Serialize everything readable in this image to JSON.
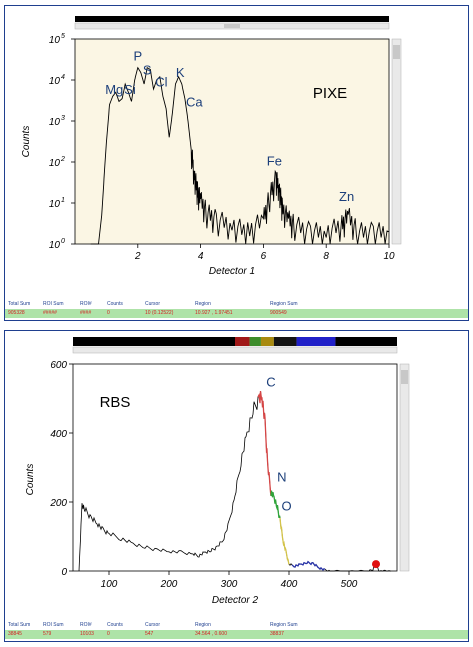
{
  "pixe": {
    "status_labels": [
      "Total Sum",
      "ROI Sum",
      "ROI#",
      "Counts",
      "Cursor",
      "Region",
      "Region Sum"
    ],
    "status_values": [
      "905328",
      "#####",
      "####",
      "0",
      "10 (0.12522)",
      "10.927 , 1.97451",
      "900549"
    ]
  },
  "rbs": {
    "status_labels": [
      "Total Sum",
      "ROI Sum",
      "ROI#",
      "Counts",
      "Cursor",
      "Region",
      "Region Sum"
    ],
    "status_values": [
      "38845",
      "579",
      "10103",
      "0",
      "547",
      "34.564 , 0.600",
      "38837"
    ]
  },
  "chart_data": [
    {
      "type": "line",
      "title": "",
      "annotation_title": "PIXE",
      "xlabel": "Detector 1",
      "ylabel": "Counts",
      "x_ticks": [
        "2",
        "4",
        "6",
        "8",
        "10"
      ],
      "y_ticks": [
        "10",
        "10",
        "10",
        "10",
        "10",
        "10"
      ],
      "y_tick_exponents": [
        "0",
        "1",
        "2",
        "3",
        "4",
        "5"
      ],
      "xlim": [
        0,
        10
      ],
      "ylim": [
        1,
        100000
      ],
      "y_scale": "log",
      "background_color": "#fbf6e4",
      "line_color": "#000000",
      "peak_labels": [
        {
          "label": "Mg",
          "x": 1.25,
          "y": 3600
        },
        {
          "label": "Si",
          "x": 1.75,
          "y": 3600
        },
        {
          "label": "P",
          "x": 2.0,
          "y": 24000
        },
        {
          "label": "S",
          "x": 2.3,
          "y": 11000
        },
        {
          "label": "Cl",
          "x": 2.75,
          "y": 5500
        },
        {
          "label": "K",
          "x": 3.35,
          "y": 9500
        },
        {
          "label": "Ca",
          "x": 3.8,
          "y": 1800
        },
        {
          "label": "Fe",
          "x": 6.35,
          "y": 65
        },
        {
          "label": "Zn",
          "x": 8.65,
          "y": 9
        }
      ],
      "spectrum": {
        "x": [
          0.5,
          0.75,
          0.85,
          0.95,
          1.0,
          1.1,
          1.2,
          1.3,
          1.4,
          1.5,
          1.6,
          1.7,
          1.8,
          1.9,
          2.0,
          2.1,
          2.2,
          2.3,
          2.4,
          2.5,
          2.6,
          2.7,
          2.8,
          2.9,
          3.0,
          3.1,
          3.2,
          3.3,
          3.4,
          3.5,
          3.6,
          3.7,
          3.8,
          3.9,
          4.0,
          4.2,
          4.5,
          5.0,
          5.5,
          6.0,
          6.2,
          6.4,
          6.5,
          6.6,
          6.8,
          7.0,
          7.5,
          8.0,
          8.5,
          8.7,
          9.0,
          9.5,
          10.0
        ],
        "y": [
          1,
          1,
          5,
          80,
          300,
          2500,
          4000,
          5000,
          3000,
          3500,
          8000,
          5000,
          3000,
          10000,
          20000,
          15000,
          8000,
          20000,
          18000,
          6000,
          10000,
          12000,
          4000,
          2000,
          400,
          1500,
          8000,
          12000,
          8000,
          3500,
          1000,
          200,
          50,
          20,
          12,
          6,
          4,
          3,
          2,
          4,
          15,
          40,
          25,
          8,
          4,
          3,
          2,
          2,
          3,
          5,
          2,
          2,
          2
        ]
      }
    },
    {
      "type": "line",
      "title": "",
      "annotation_title": "RBS",
      "xlabel": "Detector 2",
      "ylabel": "Counts",
      "x_ticks": [
        "100",
        "200",
        "300",
        "400",
        "500"
      ],
      "y_ticks": [
        "0",
        "200",
        "400",
        "600"
      ],
      "xlim": [
        40,
        580
      ],
      "ylim": [
        0,
        600
      ],
      "background_color": "#ffffff",
      "line_color": "#000000",
      "element_labels": [
        {
          "label": "C",
          "x": 370,
          "y": 535
        },
        {
          "label": "N",
          "x": 388,
          "y": 260
        },
        {
          "label": "O",
          "x": 396,
          "y": 175
        }
      ],
      "spectrum": {
        "x": [
          50,
          55,
          60,
          70,
          80,
          90,
          100,
          120,
          140,
          160,
          180,
          200,
          220,
          240,
          250,
          260,
          270,
          280,
          290,
          300,
          310,
          320,
          330,
          340,
          350,
          355,
          360,
          365,
          370,
          375,
          380,
          385,
          390,
          395,
          400,
          410,
          420,
          430,
          440,
          450,
          460,
          470,
          500,
          530,
          540,
          545,
          550,
          560,
          570
        ],
        "y": [
          0,
          195,
          180,
          155,
          140,
          120,
          110,
          95,
          80,
          70,
          62,
          58,
          55,
          50,
          45,
          55,
          60,
          70,
          90,
          140,
          220,
          320,
          400,
          470,
          500,
          510,
          430,
          300,
          230,
          215,
          190,
          150,
          90,
          55,
          20,
          15,
          20,
          25,
          22,
          10,
          3,
          0,
          0,
          0,
          5,
          20,
          0,
          0,
          0
        ]
      },
      "colored_segments": [
        {
          "color": "#d64545",
          "from": 348,
          "to": 370
        },
        {
          "color": "#2fa53a",
          "from": 370,
          "to": 385
        },
        {
          "color": "#d4c44a",
          "from": 385,
          "to": 400
        },
        {
          "color": "#2a35a8",
          "from": 405,
          "to": 460
        }
      ],
      "red_marker": {
        "x": 545,
        "y": 20,
        "color": "#e01010"
      },
      "colorbar": [
        "#000000",
        "#a01818",
        "#3c8c2a",
        "#a88a10",
        "#141414",
        "#2020c8",
        "#000000"
      ]
    }
  ]
}
